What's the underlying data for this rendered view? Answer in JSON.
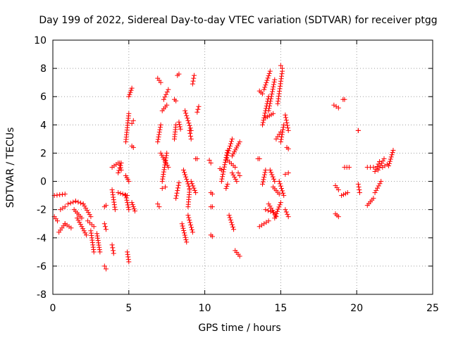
{
  "chart_data": {
    "type": "scatter",
    "title": "Day 199 of 2022, Sidereal Day-to-day VTEC variation (SDTVAR) for receiver ptgg",
    "xlabel": "GPS time / hours",
    "ylabel": "SDTVAR / TECUs",
    "xlim": [
      0,
      25
    ],
    "ylim": [
      -8,
      10
    ],
    "xticks": [
      0,
      5,
      10,
      15,
      20,
      25
    ],
    "yticks": [
      -8,
      -6,
      -4,
      -2,
      0,
      2,
      4,
      6,
      8,
      10
    ],
    "grid": true,
    "marker": "+",
    "color": "#ff0000",
    "series": [
      {
        "name": "SDTVAR",
        "arcs": [
          {
            "from": [
              0.1,
              -1.0
            ],
            "to": [
              0.8,
              -0.9
            ]
          },
          {
            "from": [
              0.1,
              -2.5
            ],
            "to": [
              0.3,
              -2.8
            ]
          },
          {
            "from": [
              0.5,
              -2.0
            ],
            "to": [
              0.8,
              -1.8
            ]
          },
          {
            "from": [
              0.4,
              -3.6
            ],
            "to": [
              0.8,
              -3.0
            ]
          },
          {
            "from": [
              0.8,
              -3.0
            ],
            "to": [
              1.2,
              -3.3
            ]
          },
          {
            "from": [
              1.0,
              -1.6
            ],
            "to": [
              1.5,
              -1.4
            ]
          },
          {
            "from": [
              1.5,
              -1.4
            ],
            "to": [
              2.0,
              -1.6
            ]
          },
          {
            "from": [
              2.0,
              -1.6
            ],
            "to": [
              2.5,
              -2.5
            ]
          },
          {
            "from": [
              1.4,
              -2.0
            ],
            "to": [
              1.9,
              -2.6
            ]
          },
          {
            "from": [
              1.6,
              -2.6
            ],
            "to": [
              2.2,
              -3.8
            ]
          },
          {
            "from": [
              2.3,
              -2.8
            ],
            "to": [
              2.7,
              -3.2
            ]
          },
          {
            "from": [
              2.5,
              -3.5
            ],
            "to": [
              2.7,
              -5.0
            ]
          },
          {
            "from": [
              2.9,
              -3.7
            ],
            "to": [
              3.1,
              -5.0
            ]
          },
          {
            "from": [
              3.4,
              -6.0
            ],
            "to": [
              3.5,
              -6.2
            ]
          },
          {
            "from": [
              3.4,
              -1.8
            ],
            "to": [
              3.5,
              -1.7
            ]
          },
          {
            "from": [
              3.4,
              -3.0
            ],
            "to": [
              3.5,
              -3.4
            ]
          },
          {
            "from": [
              3.9,
              -4.5
            ],
            "to": [
              4.0,
              -5.1
            ]
          },
          {
            "from": [
              3.9,
              -0.6
            ],
            "to": [
              4.1,
              -2.0
            ]
          },
          {
            "from": [
              3.9,
              1.0
            ],
            "to": [
              4.3,
              1.3
            ]
          },
          {
            "from": [
              4.3,
              -0.8
            ],
            "to": [
              4.9,
              -1.0
            ]
          },
          {
            "from": [
              4.8,
              -1.0
            ],
            "to": [
              5.0,
              -2.0
            ]
          },
          {
            "from": [
              4.3,
              0.6
            ],
            "to": [
              4.5,
              1.3
            ]
          },
          {
            "from": [
              4.4,
              1.3
            ],
            "to": [
              4.5,
              0.8
            ]
          },
          {
            "from": [
              4.8,
              0.4
            ],
            "to": [
              5.0,
              0.0
            ]
          },
          {
            "from": [
              4.9,
              -5.0
            ],
            "to": [
              5.0,
              -5.7
            ]
          },
          {
            "from": [
              4.8,
              2.8
            ],
            "to": [
              5.0,
              4.8
            ]
          },
          {
            "from": [
              5.0,
              6.0
            ],
            "to": [
              5.2,
              6.6
            ]
          },
          {
            "from": [
              5.2,
              2.5
            ],
            "to": [
              5.3,
              2.4
            ]
          },
          {
            "from": [
              5.2,
              4.1
            ],
            "to": [
              5.3,
              4.3
            ]
          },
          {
            "from": [
              5.2,
              -1.5
            ],
            "to": [
              5.4,
              -2.1
            ]
          },
          {
            "from": [
              6.9,
              7.3
            ],
            "to": [
              7.1,
              7.0
            ]
          },
          {
            "from": [
              6.9,
              2.8
            ],
            "to": [
              7.1,
              4.0
            ]
          },
          {
            "from": [
              6.9,
              -1.6
            ],
            "to": [
              7.0,
              -1.8
            ]
          },
          {
            "from": [
              7.2,
              5.0
            ],
            "to": [
              7.5,
              5.4
            ]
          },
          {
            "from": [
              7.3,
              5.8
            ],
            "to": [
              7.6,
              6.5
            ]
          },
          {
            "from": [
              7.1,
              2.0
            ],
            "to": [
              7.6,
              1.0
            ]
          },
          {
            "from": [
              7.2,
              0.0
            ],
            "to": [
              7.5,
              2.0
            ]
          },
          {
            "from": [
              7.2,
              -0.5
            ],
            "to": [
              7.4,
              -0.4
            ]
          },
          {
            "from": [
              8.0,
              3.0
            ],
            "to": [
              8.1,
              4.0
            ]
          },
          {
            "from": [
              8.0,
              5.8
            ],
            "to": [
              8.1,
              5.7
            ]
          },
          {
            "from": [
              8.2,
              7.5
            ],
            "to": [
              8.3,
              7.6
            ]
          },
          {
            "from": [
              8.1,
              -1.2
            ],
            "to": [
              8.3,
              -0.1
            ]
          },
          {
            "from": [
              8.3,
              4.2
            ],
            "to": [
              8.4,
              3.7
            ]
          },
          {
            "from": [
              8.7,
              5.0
            ],
            "to": [
              9.1,
              3.6
            ]
          },
          {
            "from": [
              9.0,
              3.6
            ],
            "to": [
              9.1,
              3.0
            ]
          },
          {
            "from": [
              8.6,
              0.8
            ],
            "to": [
              9.0,
              -0.5
            ]
          },
          {
            "from": [
              8.9,
              -1.8
            ],
            "to": [
              9.0,
              -0.6
            ]
          },
          {
            "from": [
              8.5,
              -3.0
            ],
            "to": [
              8.8,
              -4.3
            ]
          },
          {
            "from": [
              8.9,
              -2.4
            ],
            "to": [
              9.2,
              -3.6
            ]
          },
          {
            "from": [
              9.1,
              0.0
            ],
            "to": [
              9.4,
              -0.8
            ]
          },
          {
            "from": [
              9.2,
              6.9
            ],
            "to": [
              9.3,
              7.5
            ]
          },
          {
            "from": [
              9.5,
              4.9
            ],
            "to": [
              9.6,
              5.3
            ]
          },
          {
            "from": [
              9.4,
              1.6
            ],
            "to": [
              9.5,
              1.6
            ]
          },
          {
            "from": [
              10.4,
              -0.8
            ],
            "to": [
              10.5,
              -0.9
            ]
          },
          {
            "from": [
              10.3,
              1.5
            ],
            "to": [
              10.4,
              1.3
            ]
          },
          {
            "from": [
              10.4,
              -1.8
            ],
            "to": [
              10.5,
              -1.8
            ]
          },
          {
            "from": [
              10.4,
              -3.8
            ],
            "to": [
              10.5,
              -3.9
            ]
          },
          {
            "from": [
              11.0,
              0.9
            ],
            "to": [
              11.1,
              0.8
            ]
          },
          {
            "from": [
              11.4,
              -0.5
            ],
            "to": [
              11.5,
              -0.2
            ]
          },
          {
            "from": [
              11.1,
              0.0
            ],
            "to": [
              11.5,
              2.2
            ]
          },
          {
            "from": [
              11.4,
              1.5
            ],
            "to": [
              11.8,
              3.0
            ]
          },
          {
            "from": [
              11.5,
              1.5
            ],
            "to": [
              12.0,
              1.0
            ]
          },
          {
            "from": [
              11.8,
              0.6
            ],
            "to": [
              12.1,
              0.0
            ]
          },
          {
            "from": [
              11.6,
              -2.4
            ],
            "to": [
              11.9,
              -3.4
            ]
          },
          {
            "from": [
              11.8,
              1.8
            ],
            "to": [
              12.3,
              2.8
            ]
          },
          {
            "from": [
              12.0,
              -4.9
            ],
            "to": [
              12.3,
              -5.3
            ]
          },
          {
            "from": [
              12.2,
              0.6
            ],
            "to": [
              12.3,
              0.4
            ]
          },
          {
            "from": [
              13.5,
              1.6
            ],
            "to": [
              13.6,
              1.6
            ]
          },
          {
            "from": [
              13.6,
              -3.2
            ],
            "to": [
              14.2,
              -2.8
            ]
          },
          {
            "from": [
              13.6,
              6.4
            ],
            "to": [
              13.8,
              6.2
            ]
          },
          {
            "from": [
              13.8,
              -0.2
            ],
            "to": [
              14.0,
              0.8
            ]
          },
          {
            "from": [
              13.8,
              4.0
            ],
            "to": [
              14.2,
              6.0
            ]
          },
          {
            "from": [
              13.9,
              6.5
            ],
            "to": [
              14.3,
              7.8
            ]
          },
          {
            "from": [
              14.2,
              5.0
            ],
            "to": [
              14.6,
              7.2
            ]
          },
          {
            "from": [
              14.3,
              0.8
            ],
            "to": [
              14.6,
              0.0
            ]
          },
          {
            "from": [
              14.0,
              4.5
            ],
            "to": [
              14.5,
              4.8
            ]
          },
          {
            "from": [
              14.0,
              -2.0
            ],
            "to": [
              14.5,
              -2.2
            ]
          },
          {
            "from": [
              14.2,
              -1.6
            ],
            "to": [
              14.7,
              -2.5
            ]
          },
          {
            "from": [
              14.5,
              -0.4
            ],
            "to": [
              14.9,
              -0.9
            ]
          },
          {
            "from": [
              14.6,
              -2.6
            ],
            "to": [
              15.0,
              -1.5
            ]
          },
          {
            "from": [
              14.7,
              3.0
            ],
            "to": [
              15.0,
              3.5
            ]
          },
          {
            "from": [
              14.8,
              5.5
            ],
            "to": [
              15.1,
              7.8
            ]
          },
          {
            "from": [
              14.9,
              0.0
            ],
            "to": [
              15.2,
              -1.0
            ]
          },
          {
            "from": [
              15.0,
              2.8
            ],
            "to": [
              15.2,
              4.0
            ]
          },
          {
            "from": [
              15.0,
              8.2
            ],
            "to": [
              15.1,
              8.0
            ]
          },
          {
            "from": [
              15.3,
              4.7
            ],
            "to": [
              15.5,
              3.6
            ]
          },
          {
            "from": [
              15.3,
              0.5
            ],
            "to": [
              15.5,
              0.6
            ]
          },
          {
            "from": [
              15.3,
              -2.0
            ],
            "to": [
              15.5,
              -2.5
            ]
          },
          {
            "from": [
              15.4,
              2.4
            ],
            "to": [
              15.5,
              2.3
            ]
          },
          {
            "from": [
              18.5,
              5.4
            ],
            "to": [
              18.8,
              5.2
            ]
          },
          {
            "from": [
              18.6,
              -0.3
            ],
            "to": [
              18.8,
              -0.6
            ]
          },
          {
            "from": [
              18.6,
              -2.3
            ],
            "to": [
              18.8,
              -2.5
            ]
          },
          {
            "from": [
              19.1,
              5.8
            ],
            "to": [
              19.2,
              5.8
            ]
          },
          {
            "from": [
              19.0,
              -1.0
            ],
            "to": [
              19.4,
              -0.8
            ]
          },
          {
            "from": [
              19.2,
              1.0
            ],
            "to": [
              19.5,
              1.0
            ]
          },
          {
            "from": [
              20.1,
              3.6
            ],
            "to": [
              20.1,
              3.6
            ]
          },
          {
            "from": [
              20.1,
              -0.2
            ],
            "to": [
              20.2,
              -0.8
            ]
          },
          {
            "from": [
              20.7,
              -1.7
            ],
            "to": [
              21.1,
              -1.2
            ]
          },
          {
            "from": [
              20.7,
              1.0
            ],
            "to": [
              21.1,
              1.0
            ]
          },
          {
            "from": [
              21.2,
              0.7
            ],
            "to": [
              21.5,
              1.4
            ]
          },
          {
            "from": [
              21.2,
              -0.8
            ],
            "to": [
              21.6,
              0.0
            ]
          },
          {
            "from": [
              21.4,
              0.8
            ],
            "to": [
              21.8,
              1.6
            ]
          },
          {
            "from": [
              21.7,
              1.0
            ],
            "to": [
              22.0,
              1.2
            ]
          },
          {
            "from": [
              22.1,
              1.1
            ],
            "to": [
              22.4,
              2.2
            ]
          }
        ]
      }
    ]
  }
}
